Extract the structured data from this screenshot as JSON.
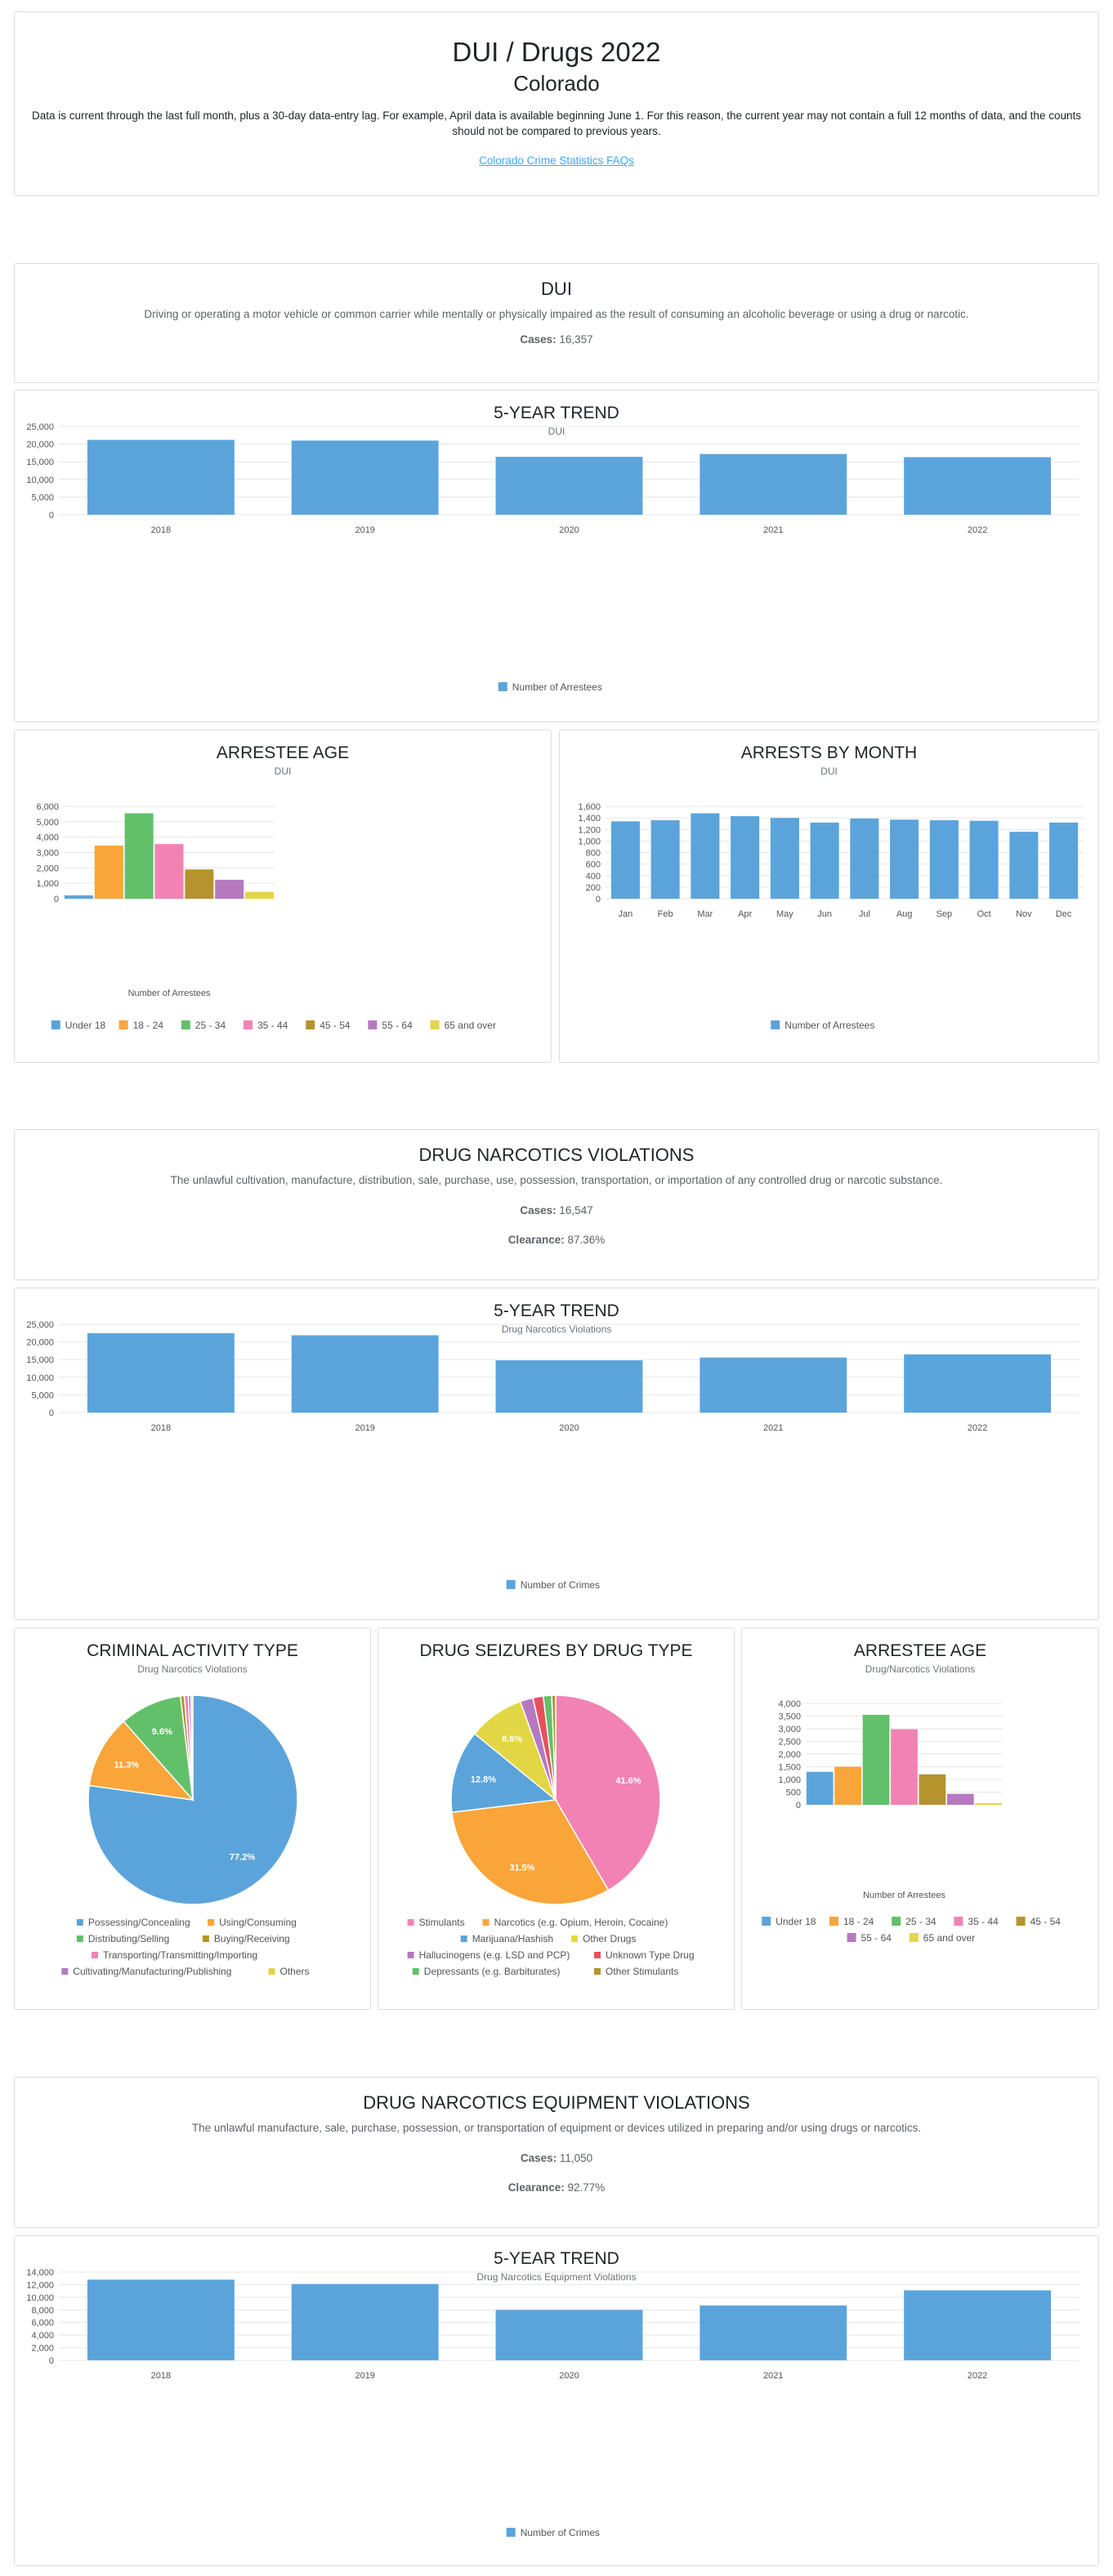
{
  "header": {
    "title": "DUI / Drugs 2022",
    "state": "Colorado",
    "note": "Data is current through the last full month, plus a 30-day data-entry lag. For example, April data is available beginning June 1. For this reason, the current year may not contain a full 12 months of data, and the counts should not be compared to previous years.",
    "faq_link": "Colorado Crime Statistics FAQs"
  },
  "dui": {
    "title": "DUI",
    "description": "Driving or operating a motor vehicle or common carrier while mentally or physically impaired as the result of consuming an alcoholic beverage or using a drug or narcotic.",
    "cases_label": "Cases:",
    "cases_value": "16,357"
  },
  "drug": {
    "title": "DRUG NARCOTICS VIOLATIONS",
    "description": "The unlawful cultivation, manufacture, distribution, sale, purchase, use, possession, transportation, or importation of any controlled drug or narcotic substance.",
    "cases_label": "Cases:",
    "cases_value": "16,547",
    "clearance_label": "Clearance:",
    "clearance_value": "87.36%"
  },
  "equip": {
    "title": "DRUG NARCOTICS EQUIPMENT VIOLATIONS",
    "description": "The unlawful manufacture, sale, purchase, possession, or transportation of equipment or devices utilized in preparing and/or using drugs or narcotics.",
    "cases_label": "Cases:",
    "cases_value": "11,050",
    "clearance_label": "Clearance:",
    "clearance_value": "92.77%"
  },
  "colors": {
    "blue": "#5ba4db",
    "orange": "#f9a53a",
    "green": "#62c06a",
    "pink": "#f282b3",
    "olive": "#b5932d",
    "purple": "#b679bf",
    "yellow": "#e3d645",
    "red": "#e8515b",
    "grid": "#e6e6e6"
  },
  "chart_data": [
    {
      "id": "dui-trend",
      "type": "bar",
      "title": "5-YEAR TREND",
      "subtitle": "DUI",
      "categories": [
        "2018",
        "2019",
        "2020",
        "2021",
        "2022"
      ],
      "series": [
        {
          "name": "Number of Arrestees",
          "values": [
            21200,
            21000,
            16400,
            17200,
            16300
          ]
        }
      ],
      "ylim": [
        0,
        25000
      ],
      "yticks": [
        "0",
        "5,000",
        "10,000",
        "15,000",
        "20,000",
        "25,000"
      ],
      "legend": "bottom"
    },
    {
      "id": "dui-age",
      "type": "bar",
      "title": "ARRESTEE AGE",
      "subtitle": "DUI",
      "xlabel": "Number of Arrestees",
      "categories": [
        "Under 18",
        "18 - 24",
        "25 - 34",
        "35 - 44",
        "45 - 54",
        "55 - 64",
        "65 and over"
      ],
      "values": [
        220,
        3450,
        5550,
        3550,
        1900,
        1230,
        450
      ],
      "ylim": [
        0,
        6000
      ],
      "yticks": [
        "0",
        "1,000",
        "2,000",
        "3,000",
        "4,000",
        "5,000",
        "6,000"
      ],
      "legend": "bottom"
    },
    {
      "id": "dui-month",
      "type": "bar",
      "title": "ARRESTS BY MONTH",
      "subtitle": "DUI",
      "categories": [
        "Jan",
        "Feb",
        "Mar",
        "Apr",
        "May",
        "Jun",
        "Jul",
        "Aug",
        "Sep",
        "Oct",
        "Nov",
        "Dec"
      ],
      "series": [
        {
          "name": "Number of Arrestees",
          "values": [
            1340,
            1360,
            1480,
            1430,
            1400,
            1320,
            1390,
            1370,
            1360,
            1350,
            1160,
            1320
          ]
        }
      ],
      "ylim": [
        0,
        1600
      ],
      "yticks": [
        "0",
        "200",
        "400",
        "600",
        "800",
        "1,000",
        "1,200",
        "1,400",
        "1,600"
      ],
      "legend": "bottom"
    },
    {
      "id": "drug-trend",
      "type": "bar",
      "title": "5-YEAR TREND",
      "subtitle": "Drug Narcotics Violations",
      "categories": [
        "2018",
        "2019",
        "2020",
        "2021",
        "2022"
      ],
      "series": [
        {
          "name": "Number of Crimes",
          "values": [
            22500,
            21900,
            14800,
            15600,
            16500
          ]
        }
      ],
      "ylim": [
        0,
        25000
      ],
      "yticks": [
        "0",
        "5,000",
        "10,000",
        "15,000",
        "20,000",
        "25,000"
      ],
      "legend": "bottom"
    },
    {
      "id": "drug-activity",
      "type": "pie",
      "title": "CRIMINAL ACTIVITY TYPE",
      "subtitle": "Drug Narcotics Violations",
      "labels": [
        "Possessing/Concealing",
        "Using/Consuming",
        "Distributing/Selling",
        "Buying/Receiving",
        "Transporting/Transmitting/Importing",
        "Cultivating/Manufacturing/Publishing",
        "Others"
      ],
      "values": [
        77.2,
        11.3,
        9.6,
        0.6,
        0.6,
        0.4,
        0.3
      ],
      "data_labels": [
        "77.2%",
        "11.3%",
        "9.6%",
        "",
        "",
        "",
        ""
      ],
      "legend": "bottom"
    },
    {
      "id": "drug-seizures",
      "type": "pie",
      "title": "DRUG SEIZURES BY DRUG TYPE",
      "labels": [
        "Stimulants",
        "Narcotics (e.g. Opium, Heroin, Cocaine)",
        "Marijuana/Hashish",
        "Other Drugs",
        "Hallucinogens (e.g. LSD and PCP)",
        "Unknown Type Drug",
        "Depressants (e.g. Barbiturates)",
        "Other Stimulants"
      ],
      "values": [
        41.6,
        31.5,
        12.8,
        8.6,
        2.0,
        1.6,
        1.3,
        0.6
      ],
      "data_labels": [
        "41.6%",
        "31.5%",
        "12.8%",
        "8.6%",
        "",
        "",
        "",
        ""
      ],
      "legend": "bottom"
    },
    {
      "id": "drug-age",
      "type": "bar",
      "title": "ARRESTEE AGE",
      "subtitle": "Drug/Narcotics Violations",
      "xlabel": "Number of Arrestees",
      "categories": [
        "Under 18",
        "18 - 24",
        "25 - 34",
        "35 - 44",
        "45 - 54",
        "55 - 64",
        "65 and over"
      ],
      "values": [
        1300,
        1500,
        3550,
        2980,
        1200,
        430,
        60
      ],
      "ylim": [
        0,
        4000
      ],
      "yticks": [
        "0",
        "500",
        "1,000",
        "1,500",
        "2,000",
        "2,500",
        "3,000",
        "3,500",
        "4,000"
      ],
      "legend": "bottom"
    },
    {
      "id": "equip-trend",
      "type": "bar",
      "title": "5-YEAR TREND",
      "subtitle": "Drug Narcotics Equipment Violations",
      "categories": [
        "2018",
        "2019",
        "2020",
        "2021",
        "2022"
      ],
      "series": [
        {
          "name": "Number of Crimes",
          "values": [
            12800,
            12100,
            8000,
            8700,
            11100
          ]
        }
      ],
      "ylim": [
        0,
        14000
      ],
      "yticks": [
        "0",
        "2,000",
        "4,000",
        "6,000",
        "8,000",
        "10,000",
        "12,000",
        "14,000"
      ],
      "legend": "bottom"
    }
  ]
}
